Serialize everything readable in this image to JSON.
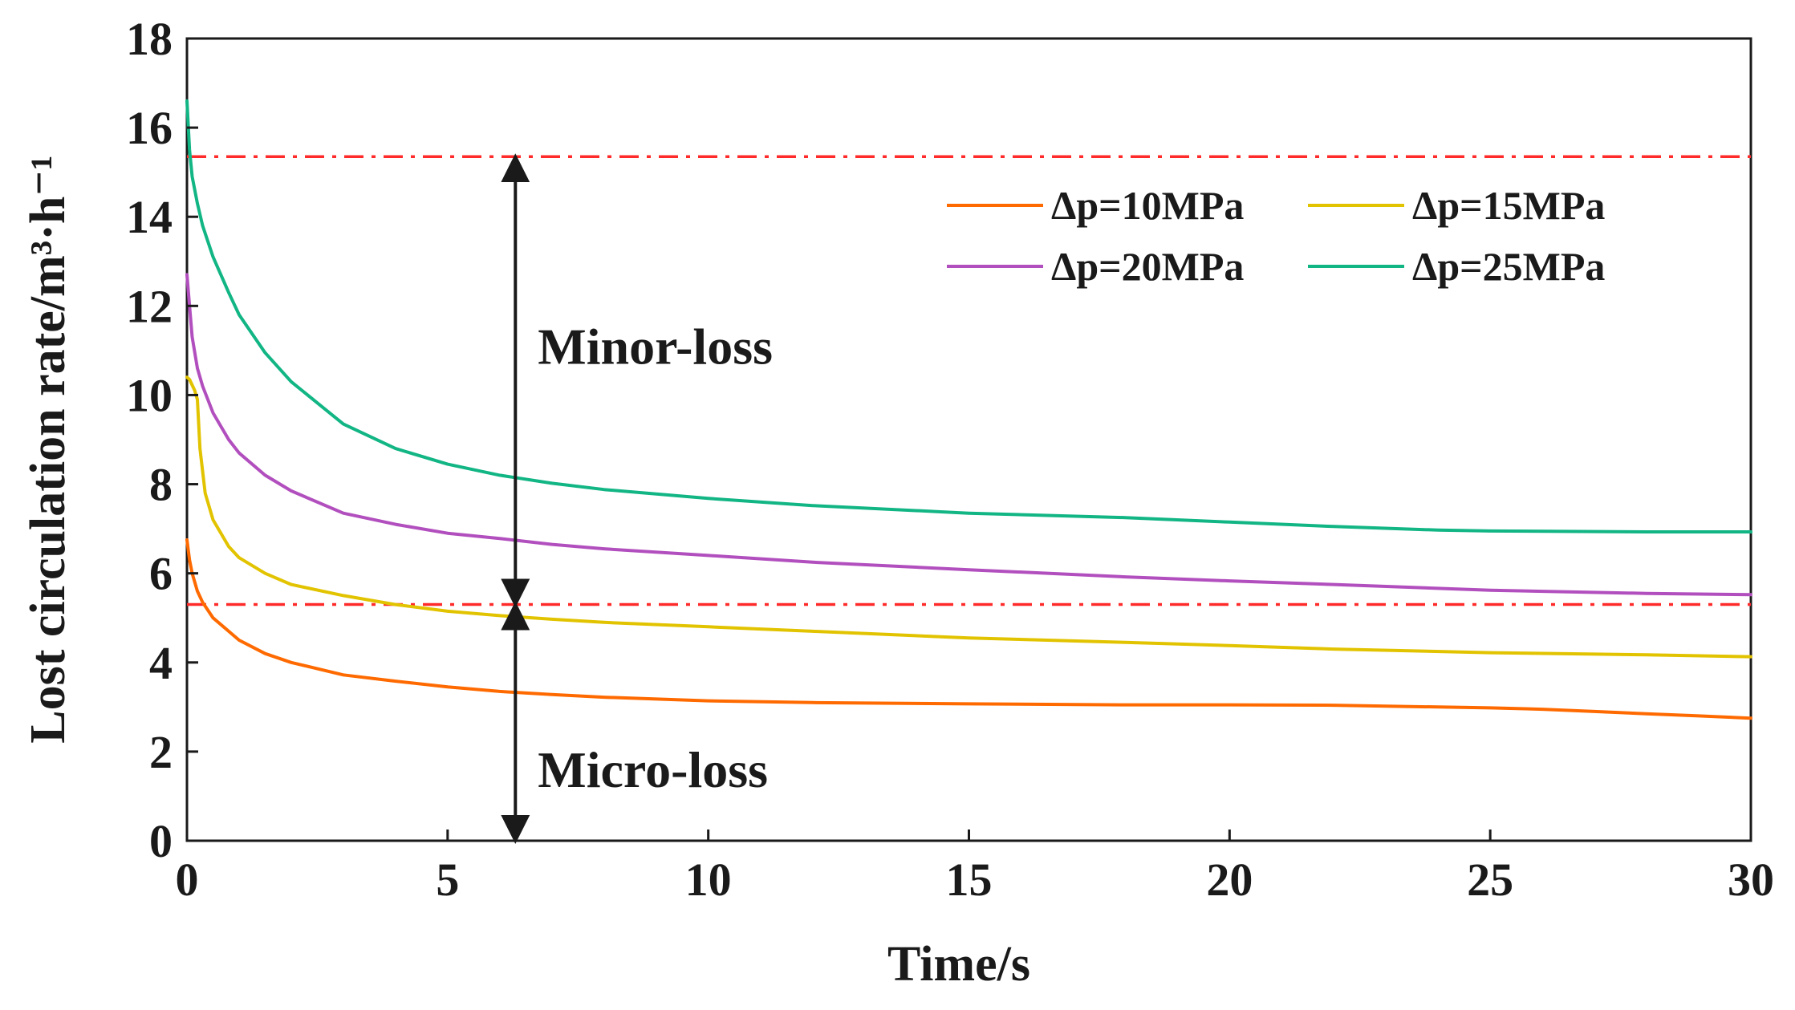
{
  "chart_data": {
    "type": "line",
    "title": "",
    "xlabel": "Time/s",
    "ylabel": "Lost circulation rate/m³·h⁻¹",
    "xlim": [
      0,
      30
    ],
    "ylim": [
      0,
      18
    ],
    "xticks": [
      0,
      5,
      10,
      15,
      20,
      25,
      30
    ],
    "yticks": [
      0,
      2,
      4,
      6,
      8,
      10,
      12,
      14,
      16,
      18
    ],
    "xticklabels": [
      "0",
      "5",
      "10",
      "15",
      "20",
      "25",
      "30"
    ],
    "yticklabels": [
      "0",
      "2",
      "4",
      "6",
      "8",
      "10",
      "12",
      "14",
      "16",
      "18"
    ],
    "grid": false,
    "legend_position": "top-right",
    "series": [
      {
        "name": "Δp=10MPa",
        "color": "#ff6a00",
        "x": [
          0,
          0.05,
          0.1,
          0.2,
          0.3,
          0.5,
          0.8,
          1,
          1.5,
          2,
          3,
          4,
          5,
          6,
          7,
          8,
          10,
          12,
          15,
          18,
          20,
          22,
          24,
          25,
          26,
          27,
          28,
          29,
          30
        ],
        "values": [
          6.75,
          6.3,
          6.0,
          5.6,
          5.35,
          5.0,
          4.7,
          4.5,
          4.2,
          4.0,
          3.72,
          3.58,
          3.45,
          3.35,
          3.28,
          3.22,
          3.14,
          3.1,
          3.07,
          3.05,
          3.05,
          3.04,
          3.0,
          2.98,
          2.95,
          2.9,
          2.85,
          2.8,
          2.75
        ]
      },
      {
        "name": "Δp=15MPa",
        "color": "#e2c300",
        "x": [
          0,
          0.05,
          0.15,
          0.2,
          0.25,
          0.35,
          0.5,
          0.8,
          1,
          1.5,
          2,
          3,
          4,
          5,
          6,
          7,
          8,
          10,
          12,
          15,
          18,
          20,
          22,
          25,
          28,
          30
        ],
        "values": [
          10.4,
          10.35,
          10.1,
          9.9,
          8.8,
          7.8,
          7.2,
          6.6,
          6.35,
          6.0,
          5.75,
          5.5,
          5.3,
          5.15,
          5.05,
          4.97,
          4.9,
          4.8,
          4.7,
          4.55,
          4.45,
          4.38,
          4.3,
          4.22,
          4.17,
          4.13
        ]
      },
      {
        "name": "Δp=20MPa",
        "color": "#b24fbe",
        "x": [
          0,
          0.05,
          0.1,
          0.2,
          0.3,
          0.5,
          0.8,
          1,
          1.5,
          2,
          3,
          4,
          5,
          6,
          7,
          8,
          10,
          12,
          15,
          18,
          20,
          22,
          25,
          28,
          30
        ],
        "values": [
          12.7,
          12.0,
          11.3,
          10.6,
          10.2,
          9.6,
          9.0,
          8.7,
          8.2,
          7.85,
          7.35,
          7.1,
          6.9,
          6.78,
          6.65,
          6.55,
          6.4,
          6.25,
          6.08,
          5.92,
          5.83,
          5.75,
          5.62,
          5.55,
          5.52
        ]
      },
      {
        "name": "Δp=25MPa",
        "color": "#12b584",
        "x": [
          0,
          0.05,
          0.1,
          0.2,
          0.3,
          0.5,
          0.8,
          1,
          1.5,
          2,
          3,
          4,
          5,
          6,
          7,
          8,
          10,
          12,
          15,
          18,
          20,
          22,
          24,
          25,
          28,
          30
        ],
        "values": [
          16.6,
          15.5,
          14.9,
          14.3,
          13.8,
          13.1,
          12.3,
          11.8,
          10.95,
          10.3,
          9.35,
          8.8,
          8.45,
          8.2,
          8.02,
          7.88,
          7.68,
          7.52,
          7.35,
          7.25,
          7.15,
          7.05,
          6.97,
          6.95,
          6.93,
          6.93
        ]
      }
    ],
    "reference_lines": [
      {
        "y": 15.35,
        "color": "#ff2a2a",
        "style": "dash-dot"
      },
      {
        "y": 5.3,
        "color": "#ff2a2a",
        "style": "dash-dot"
      }
    ],
    "annotations": [
      {
        "text": "Minor-loss",
        "x": 6.3,
        "y": 11.1,
        "arrow_x": 6.3,
        "arrow_from": 5.3,
        "arrow_to": 15.35
      },
      {
        "text": "Micro-loss",
        "x": 6.3,
        "y": 1.6,
        "arrow_x": 6.3,
        "arrow_from": 0,
        "arrow_to": 5.3
      }
    ]
  }
}
